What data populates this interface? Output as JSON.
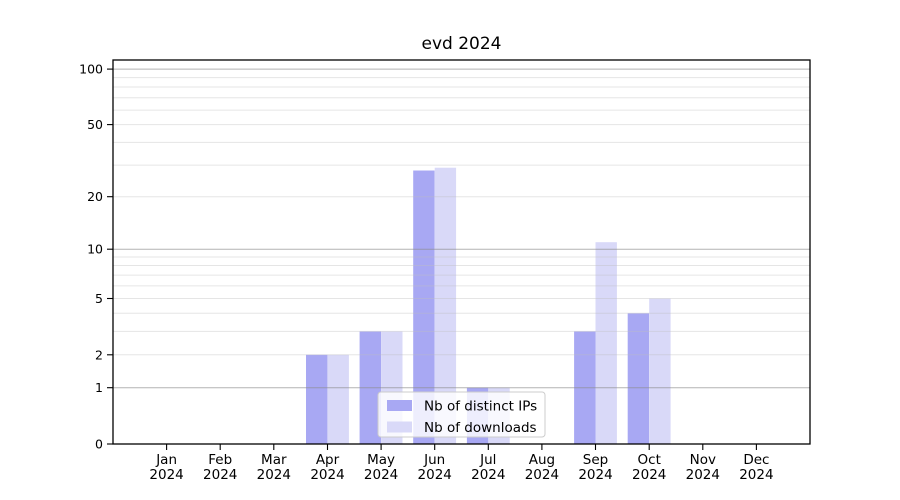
{
  "chart_data": {
    "type": "bar",
    "title": "evd 2024",
    "categories": [
      "Jan",
      "Feb",
      "Mar",
      "Apr",
      "May",
      "Jun",
      "Jul",
      "Aug",
      "Sep",
      "Oct",
      "Nov",
      "Dec"
    ],
    "tick_year": "2024",
    "series": [
      {
        "key": "distinct-ips",
        "name": "Nb of distinct IPs",
        "color": "#a8a8f3",
        "values": [
          0,
          0,
          0,
          2,
          3,
          28,
          1,
          0,
          3,
          4,
          0,
          0
        ]
      },
      {
        "key": "downloads",
        "name": "Nb of downloads",
        "color": "#d9d9f8",
        "values": [
          0,
          0,
          0,
          2,
          3,
          29,
          1,
          0,
          11,
          5,
          0,
          0
        ]
      }
    ],
    "xlabel": "",
    "ylabel": "",
    "y_scale": "log(1+y)",
    "ylim": [
      0,
      112
    ],
    "y_ticks": [
      0,
      1,
      2,
      5,
      10,
      20,
      50,
      100
    ],
    "grid": true,
    "grid_major_values": [
      1,
      10,
      100
    ],
    "grid_minor_values": [
      2,
      3,
      4,
      5,
      6,
      7,
      8,
      9,
      20,
      30,
      40,
      50,
      60,
      70,
      80,
      90
    ],
    "legend_position": "lower center",
    "colors": {
      "axis": "#000000",
      "tick_label": "#000000",
      "grid_major": "#8a8a8a",
      "grid_minor": "#bebebe",
      "legend_border": "#cccccc",
      "legend_background": "rgba(255,255,255,0.8)"
    }
  }
}
